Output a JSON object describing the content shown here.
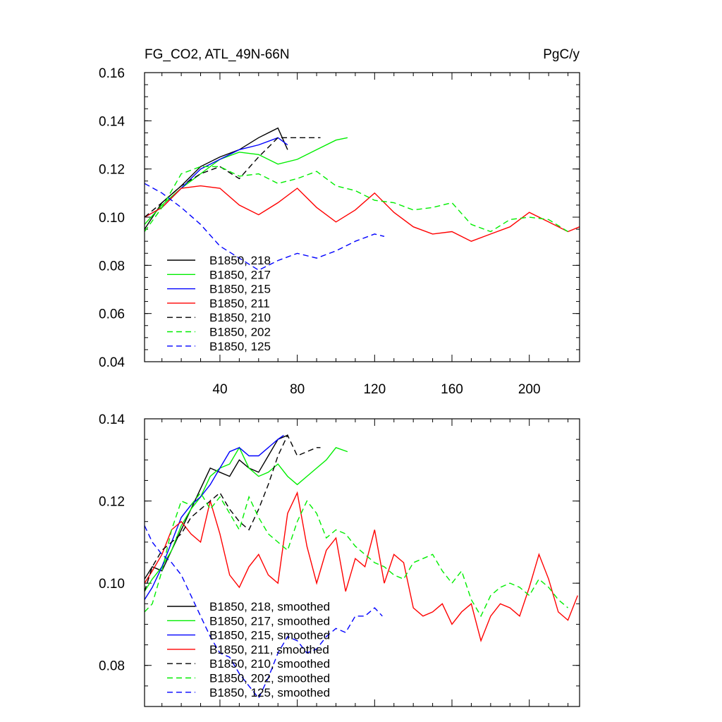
{
  "chart_data": [
    {
      "type": "line",
      "title": "FG_CO2, ATL_49N-66N",
      "units": "PgC/y",
      "xlabel": "",
      "ylabel": "",
      "xlim": [
        1,
        226
      ],
      "ylim": [
        0.04,
        0.16
      ],
      "x_ticks": [
        40,
        80,
        120,
        160,
        200
      ],
      "x_tick_labels": [
        "40",
        "80",
        "120",
        "160",
        "200"
      ],
      "y_ticks": [
        0.04,
        0.06,
        0.08,
        0.1,
        0.12,
        0.14,
        0.16
      ],
      "y_tick_labels": [
        "0.04",
        "0.06",
        "0.08",
        "0.10",
        "0.12",
        "0.14",
        "0.16"
      ],
      "legend_position": "bottom-left",
      "series": [
        {
          "name": "B1850, 218",
          "color": "#000000",
          "dash": "solid",
          "x": [
            1,
            10,
            20,
            30,
            40,
            50,
            60,
            70,
            75
          ],
          "values": [
            0.095,
            0.106,
            0.113,
            0.121,
            0.125,
            0.128,
            0.133,
            0.137,
            0.128
          ]
        },
        {
          "name": "B1850, 217",
          "color": "#00ee00",
          "dash": "solid",
          "x": [
            1,
            10,
            20,
            30,
            40,
            50,
            60,
            70,
            80,
            90,
            100,
            106
          ],
          "values": [
            0.097,
            0.105,
            0.112,
            0.118,
            0.124,
            0.127,
            0.126,
            0.122,
            0.124,
            0.128,
            0.132,
            0.133
          ]
        },
        {
          "name": "B1850, 215",
          "color": "#0000ff",
          "dash": "solid",
          "x": [
            1,
            10,
            20,
            30,
            40,
            50,
            60,
            70,
            75
          ],
          "values": [
            0.1,
            0.104,
            0.112,
            0.12,
            0.124,
            0.128,
            0.13,
            0.133,
            0.13
          ]
        },
        {
          "name": "B1850, 211",
          "color": "#ff0000",
          "dash": "solid",
          "x": [
            1,
            10,
            20,
            30,
            40,
            50,
            60,
            70,
            80,
            90,
            100,
            110,
            120,
            130,
            140,
            150,
            160,
            170,
            180,
            190,
            200,
            210,
            220,
            226
          ],
          "values": [
            0.1,
            0.104,
            0.112,
            0.113,
            0.112,
            0.105,
            0.101,
            0.106,
            0.112,
            0.104,
            0.098,
            0.103,
            0.11,
            0.102,
            0.096,
            0.093,
            0.094,
            0.09,
            0.093,
            0.096,
            0.102,
            0.098,
            0.094,
            0.096
          ]
        },
        {
          "name": "B1850, 210",
          "color": "#000000",
          "dash": "dashed",
          "x": [
            1,
            10,
            20,
            30,
            40,
            50,
            60,
            70,
            80,
            92
          ],
          "values": [
            0.1,
            0.106,
            0.113,
            0.118,
            0.121,
            0.116,
            0.125,
            0.133,
            0.133,
            0.133
          ]
        },
        {
          "name": "B1850, 202",
          "color": "#00ee00",
          "dash": "dashed",
          "x": [
            1,
            10,
            20,
            30,
            40,
            50,
            60,
            70,
            80,
            90,
            100,
            110,
            120,
            130,
            140,
            150,
            160,
            170,
            180,
            190,
            200,
            210,
            220
          ],
          "values": [
            0.094,
            0.104,
            0.118,
            0.121,
            0.121,
            0.117,
            0.118,
            0.114,
            0.116,
            0.119,
            0.113,
            0.111,
            0.107,
            0.106,
            0.103,
            0.104,
            0.106,
            0.097,
            0.094,
            0.099,
            0.1,
            0.099,
            0.094
          ]
        },
        {
          "name": "B1850, 125",
          "color": "#0000ff",
          "dash": "dashed",
          "x": [
            1,
            10,
            20,
            30,
            40,
            50,
            60,
            70,
            80,
            90,
            100,
            110,
            120,
            125
          ],
          "values": [
            0.114,
            0.11,
            0.104,
            0.097,
            0.088,
            0.083,
            0.078,
            0.082,
            0.085,
            0.083,
            0.086,
            0.09,
            0.093,
            0.092
          ]
        }
      ]
    },
    {
      "type": "line",
      "title": "",
      "xlabel": "",
      "ylabel": "",
      "xlim": [
        1,
        226
      ],
      "ylim": [
        0.07,
        0.14
      ],
      "y_ticks": [
        0.08,
        0.1,
        0.12,
        0.14
      ],
      "y_tick_labels": [
        "0.08",
        "0.10",
        "0.12",
        "0.14"
      ],
      "legend_position": "bottom-left",
      "series": [
        {
          "name": "B1850, 218, smoothed",
          "color": "#000000",
          "dash": "solid",
          "x": [
            1,
            5,
            10,
            15,
            20,
            25,
            30,
            35,
            40,
            45,
            50,
            55,
            60,
            65,
            70,
            75
          ],
          "values": [
            0.101,
            0.104,
            0.103,
            0.108,
            0.113,
            0.118,
            0.123,
            0.128,
            0.127,
            0.126,
            0.13,
            0.128,
            0.127,
            0.131,
            0.135,
            0.136
          ]
        },
        {
          "name": "B1850, 217, smoothed",
          "color": "#00ee00",
          "dash": "solid",
          "x": [
            1,
            5,
            10,
            15,
            20,
            25,
            30,
            35,
            40,
            45,
            50,
            55,
            60,
            65,
            70,
            75,
            80,
            85,
            90,
            95,
            100,
            106
          ],
          "values": [
            0.098,
            0.101,
            0.104,
            0.108,
            0.114,
            0.118,
            0.121,
            0.126,
            0.128,
            0.129,
            0.133,
            0.128,
            0.126,
            0.127,
            0.129,
            0.126,
            0.124,
            0.126,
            0.128,
            0.13,
            0.133,
            0.132
          ]
        },
        {
          "name": "B1850, 215, smoothed",
          "color": "#0000ff",
          "dash": "solid",
          "x": [
            1,
            5,
            10,
            15,
            20,
            25,
            30,
            35,
            40,
            45,
            50,
            55,
            60,
            65,
            70,
            73
          ],
          "values": [
            0.096,
            0.099,
            0.104,
            0.11,
            0.116,
            0.119,
            0.121,
            0.124,
            0.128,
            0.132,
            0.133,
            0.131,
            0.131,
            0.133,
            0.135,
            0.136
          ]
        },
        {
          "name": "B1850, 211, smoothed",
          "color": "#ff0000",
          "dash": "solid",
          "x": [
            1,
            5,
            10,
            15,
            20,
            25,
            30,
            35,
            40,
            45,
            50,
            55,
            60,
            65,
            70,
            75,
            80,
            85,
            90,
            95,
            100,
            105,
            110,
            115,
            120,
            125,
            130,
            135,
            140,
            145,
            150,
            155,
            160,
            165,
            170,
            175,
            180,
            185,
            190,
            195,
            200,
            205,
            210,
            215,
            220,
            225
          ],
          "values": [
            0.1,
            0.103,
            0.107,
            0.113,
            0.115,
            0.112,
            0.11,
            0.12,
            0.112,
            0.102,
            0.099,
            0.104,
            0.107,
            0.102,
            0.1,
            0.117,
            0.122,
            0.109,
            0.1,
            0.108,
            0.111,
            0.098,
            0.106,
            0.104,
            0.113,
            0.1,
            0.107,
            0.105,
            0.094,
            0.092,
            0.093,
            0.095,
            0.09,
            0.093,
            0.095,
            0.086,
            0.092,
            0.095,
            0.094,
            0.092,
            0.099,
            0.107,
            0.101,
            0.093,
            0.091,
            0.097
          ]
        },
        {
          "name": "B1850, 210, smoothed",
          "color": "#000000",
          "dash": "dashed",
          "x": [
            1,
            5,
            10,
            15,
            20,
            25,
            30,
            35,
            40,
            45,
            50,
            55,
            60,
            65,
            70,
            75,
            80,
            85,
            90,
            92
          ],
          "values": [
            0.098,
            0.104,
            0.108,
            0.11,
            0.112,
            0.116,
            0.118,
            0.12,
            0.122,
            0.118,
            0.115,
            0.113,
            0.118,
            0.124,
            0.131,
            0.136,
            0.131,
            0.132,
            0.133,
            0.133
          ]
        },
        {
          "name": "B1850, 202, smoothed",
          "color": "#00ee00",
          "dash": "dashed",
          "x": [
            1,
            5,
            10,
            15,
            20,
            25,
            30,
            35,
            40,
            45,
            50,
            55,
            60,
            65,
            70,
            75,
            80,
            85,
            90,
            95,
            100,
            105,
            110,
            115,
            120,
            125,
            130,
            135,
            140,
            145,
            150,
            155,
            160,
            165,
            170,
            175,
            180,
            185,
            190,
            195,
            200,
            205,
            210,
            215,
            220
          ],
          "values": [
            0.093,
            0.095,
            0.103,
            0.113,
            0.12,
            0.119,
            0.122,
            0.118,
            0.121,
            0.117,
            0.113,
            0.121,
            0.116,
            0.112,
            0.11,
            0.108,
            0.115,
            0.12,
            0.117,
            0.111,
            0.113,
            0.112,
            0.109,
            0.107,
            0.105,
            0.104,
            0.102,
            0.101,
            0.105,
            0.106,
            0.107,
            0.103,
            0.1,
            0.103,
            0.096,
            0.092,
            0.097,
            0.099,
            0.1,
            0.099,
            0.097,
            0.101,
            0.099,
            0.096,
            0.094
          ]
        },
        {
          "name": "B1850, 125, smoothed",
          "color": "#0000ff",
          "dash": "dashed",
          "x": [
            1,
            5,
            10,
            15,
            20,
            25,
            30,
            35,
            40,
            45,
            50,
            55,
            60,
            65,
            70,
            75,
            80,
            85,
            90,
            95,
            100,
            105,
            110,
            115,
            120,
            124
          ],
          "values": [
            0.114,
            0.11,
            0.107,
            0.105,
            0.102,
            0.097,
            0.092,
            0.087,
            0.083,
            0.082,
            0.078,
            0.075,
            0.072,
            0.077,
            0.083,
            0.087,
            0.086,
            0.083,
            0.084,
            0.087,
            0.089,
            0.088,
            0.092,
            0.092,
            0.094,
            0.092
          ]
        }
      ]
    }
  ]
}
